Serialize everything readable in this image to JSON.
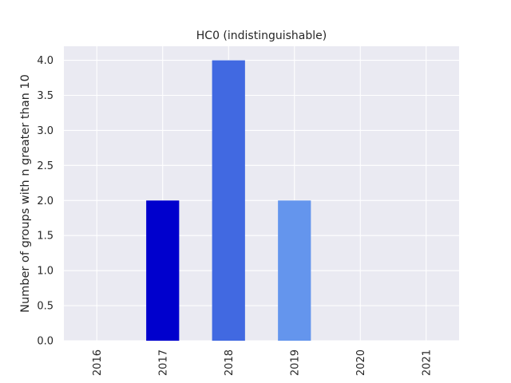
{
  "chart_data": {
    "type": "bar",
    "title": "HC0 (indistinguishable)",
    "xlabel": "",
    "ylabel": "Number of groups with n greater than 10",
    "categories": [
      "2016",
      "2017",
      "2018",
      "2019",
      "2020",
      "2021"
    ],
    "values": [
      0,
      2,
      4,
      2,
      0,
      0
    ],
    "colors": [
      "#0000CD",
      "#0000CD",
      "#4169E1",
      "#6495ED",
      "#6495ED",
      "#6495ED"
    ],
    "ylim": [
      0,
      4.2
    ],
    "yticks": [
      "0.0",
      "0.5",
      "1.0",
      "1.5",
      "2.0",
      "2.5",
      "3.0",
      "3.5",
      "4.0"
    ],
    "grid": true,
    "background": "#EAEAF2"
  }
}
